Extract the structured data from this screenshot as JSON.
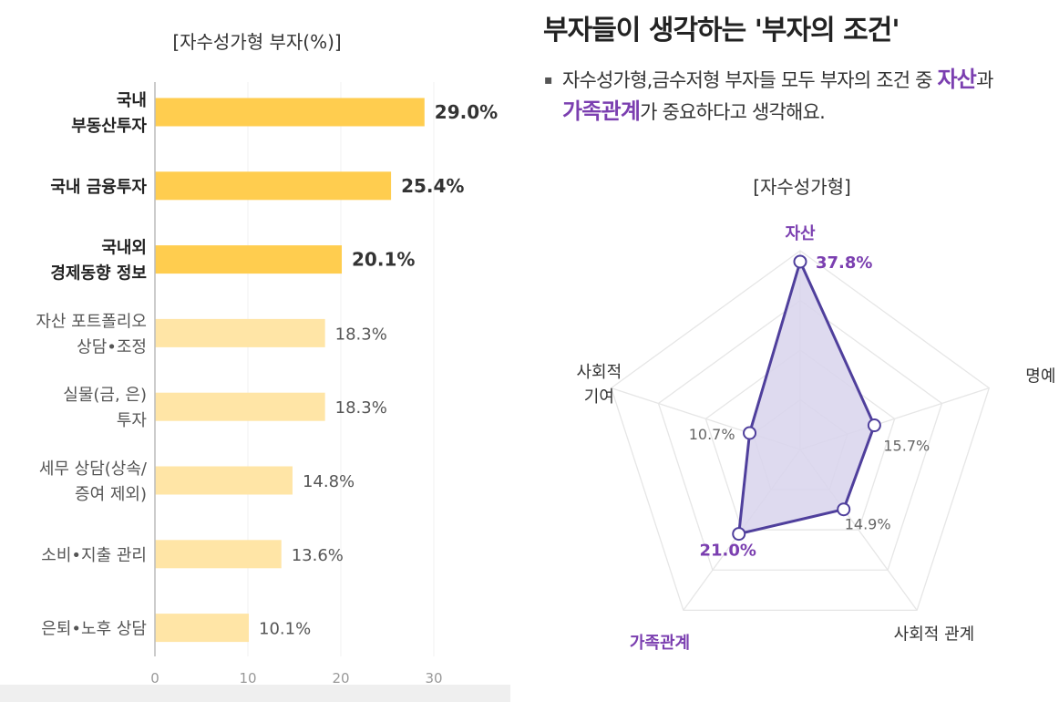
{
  "left_chart": {
    "title": "[자수성가형 부자(%)]",
    "chart_data": {
      "type": "bar",
      "orientation": "horizontal",
      "title": "[자수성가형 부자(%)]",
      "categories": [
        [
          "국내",
          "부동산투자"
        ],
        [
          "국내 금융투자"
        ],
        [
          "국내외",
          "경제동향 정보"
        ],
        [
          "자산 포트폴리오",
          "상담•조정"
        ],
        [
          "실물(금, 은)",
          "투자"
        ],
        [
          "세무 상담(상속/",
          "증여 제외)"
        ],
        [
          "소비•지출 관리"
        ],
        [
          "은퇴•노후 상담"
        ]
      ],
      "values": [
        29.0,
        25.4,
        20.1,
        18.3,
        18.3,
        14.8,
        13.6,
        10.1
      ],
      "value_labels": [
        "29.0%",
        "25.4%",
        "20.1%",
        "18.3%",
        "18.3%",
        "14.8%",
        "13.6%",
        "10.1%"
      ],
      "highlight_top": 3,
      "xlim": [
        0,
        30
      ],
      "xticks": [
        0,
        10,
        20,
        30
      ],
      "colors": {
        "top": "#ffcd4f",
        "rest": "#ffe5a6"
      }
    }
  },
  "right": {
    "title": "부자들이 생각하는 '부자의 조건'",
    "description": {
      "bullet": "▪",
      "line1_text": "자수성가형,금수저형 부자들 모두 부자의 조건 중 ",
      "line1_highlight": "자산",
      "line1_suffix": "과",
      "line2_highlight": "가족관계",
      "line2_text": "가 중요하다고 생각해요."
    },
    "chart_data": {
      "type": "radar",
      "title": "[자수성가형]",
      "axes": [
        "자산",
        "명예",
        "사회적 관계",
        "가족관계",
        "사회적 기여"
      ],
      "axis_label_lines": [
        [
          "자산"
        ],
        [
          "명예"
        ],
        [
          "사회적 관계"
        ],
        [
          "가족관계"
        ],
        [
          "사회적",
          "기여"
        ]
      ],
      "values": [
        37.8,
        15.7,
        14.9,
        21.0,
        10.7
      ],
      "value_labels": [
        "37.8%",
        "15.7%",
        "14.9%",
        "21.0%",
        "10.7%"
      ],
      "highlight_axes": [
        0,
        3
      ],
      "max": 40,
      "rings": 4,
      "colors": {
        "line": "#4f3f9c",
        "fill": "#d8d3ec",
        "accent": "#7b3fb0",
        "grid": "#e6e6e6",
        "label": "#333333",
        "value": "#666666"
      }
    }
  }
}
